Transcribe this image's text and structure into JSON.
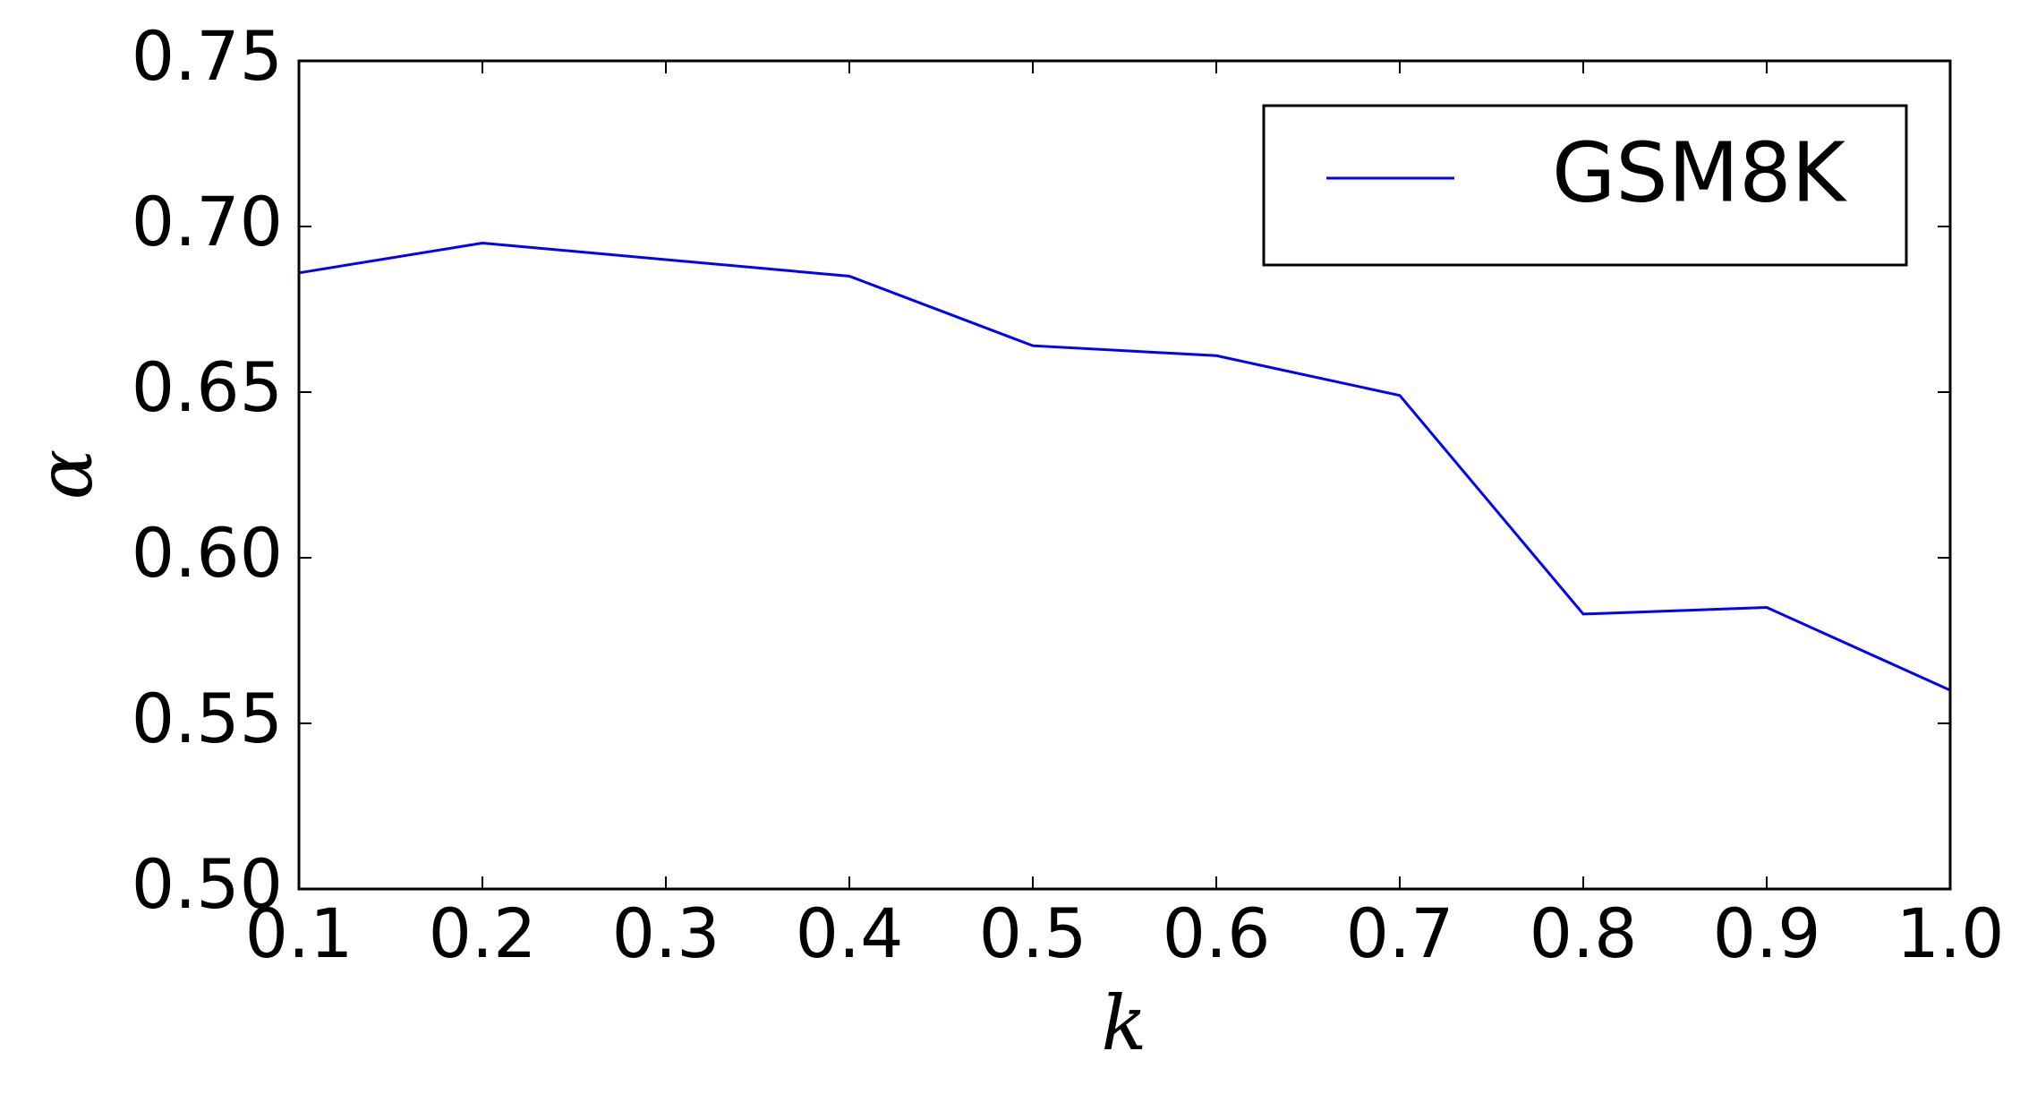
{
  "chart_data": {
    "type": "line",
    "xlabel": "k",
    "ylabel": "α",
    "x": [
      0.1,
      0.2,
      0.4,
      0.5,
      0.6,
      0.7,
      0.8,
      0.9,
      1.0
    ],
    "series": [
      {
        "name": "GSM8K",
        "color": "#0000ff",
        "values": [
          0.686,
          0.695,
          0.685,
          0.664,
          0.661,
          0.649,
          0.583,
          0.585,
          0.56
        ]
      }
    ],
    "xlim": [
      0.1,
      1.0
    ],
    "xticks": [
      0.1,
      0.2,
      0.3,
      0.4,
      0.5,
      0.6,
      0.7,
      0.8,
      0.9,
      {
        "value": 1.0,
        "label": "1.0"
      }
    ],
    "ylim": [
      0.5,
      0.75
    ],
    "yticks": [
      {
        "value": 0.5,
        "label": "0.50"
      },
      0.55,
      {
        "value": 0.6,
        "label": "0.60"
      },
      0.65,
      {
        "value": 0.7,
        "label": "0.70"
      },
      0.75
    ],
    "grid": false,
    "legend": "upper right"
  }
}
